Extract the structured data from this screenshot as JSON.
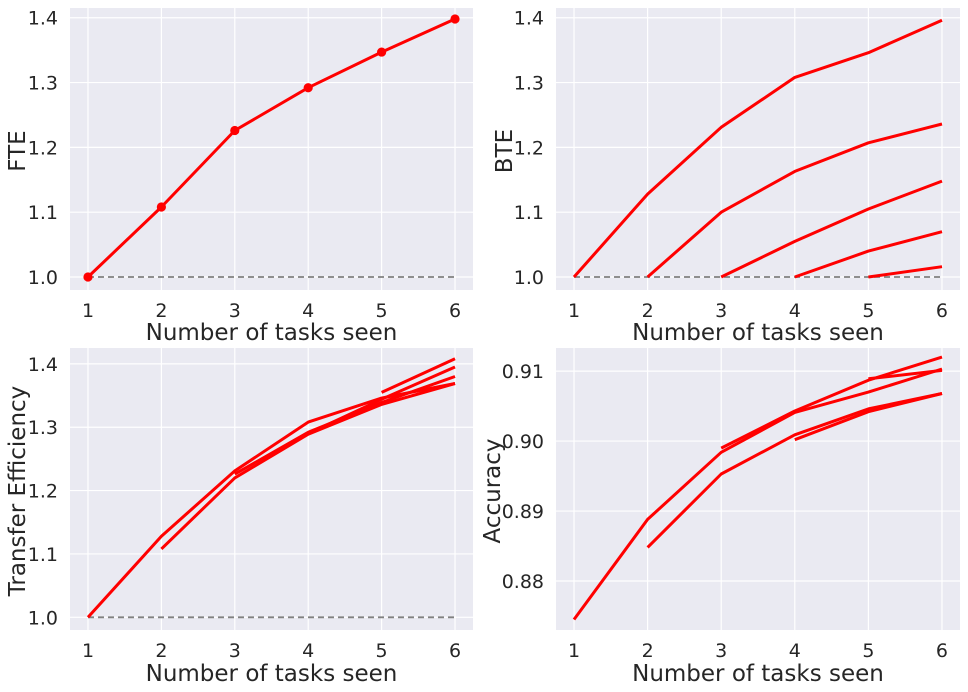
{
  "chart_data": [
    {
      "type": "line",
      "xlabel": "Number of tasks seen",
      "ylabel": "FTE",
      "x": [
        1,
        2,
        3,
        4,
        5,
        6
      ],
      "xticks": [
        "1",
        "2",
        "3",
        "4",
        "5",
        "6"
      ],
      "yticks": [
        "1.0",
        "1.1",
        "1.2",
        "1.3",
        "1.4"
      ],
      "ylim": [
        0.98,
        1.415
      ],
      "grid": true,
      "markers": true,
      "reference_line": {
        "y": 1.0,
        "x_range": [
          1,
          6
        ],
        "style": "dashed",
        "color": "#808080"
      },
      "series": [
        {
          "x": [
            1,
            2,
            3,
            4,
            5,
            6
          ],
          "values": [
            1.0,
            1.108,
            1.226,
            1.292,
            1.347,
            1.398
          ]
        }
      ]
    },
    {
      "type": "line",
      "xlabel": "Number of tasks seen",
      "ylabel": "BTE",
      "xticks": [
        "1",
        "2",
        "3",
        "4",
        "5",
        "6"
      ],
      "yticks": [
        "1.0",
        "1.1",
        "1.2",
        "1.3",
        "1.4"
      ],
      "ylim": [
        0.98,
        1.415
      ],
      "grid": true,
      "markers": false,
      "reference_line": {
        "y": 1.0,
        "x_range": [
          1,
          6
        ],
        "style": "dashed",
        "color": "#808080"
      },
      "series": [
        {
          "x": [
            1,
            2,
            3,
            4,
            5,
            6
          ],
          "values": [
            1.0,
            1.128,
            1.231,
            1.308,
            1.346,
            1.396
          ]
        },
        {
          "x": [
            2,
            3,
            4,
            5,
            6
          ],
          "values": [
            1.0,
            1.1,
            1.163,
            1.207,
            1.236
          ]
        },
        {
          "x": [
            3,
            4,
            5,
            6
          ],
          "values": [
            1.0,
            1.055,
            1.105,
            1.148
          ]
        },
        {
          "x": [
            4,
            5,
            6
          ],
          "values": [
            1.0,
            1.04,
            1.07
          ]
        },
        {
          "x": [
            5,
            6
          ],
          "values": [
            1.0,
            1.016
          ]
        }
      ]
    },
    {
      "type": "line",
      "xlabel": "Number of tasks seen",
      "ylabel": "Transfer Efficiency",
      "xticks": [
        "1",
        "2",
        "3",
        "4",
        "5",
        "6"
      ],
      "yticks": [
        "1.0",
        "1.1",
        "1.2",
        "1.3",
        "1.4"
      ],
      "ylim": [
        0.98,
        1.425
      ],
      "grid": true,
      "markers": false,
      "reference_line": {
        "y": 1.0,
        "x_range": [
          1,
          6
        ],
        "style": "dashed",
        "color": "#808080"
      },
      "series": [
        {
          "x": [
            1,
            2,
            3,
            4,
            5,
            6
          ],
          "values": [
            1.0,
            1.128,
            1.231,
            1.308,
            1.346,
            1.369
          ]
        },
        {
          "x": [
            2,
            3,
            4,
            5,
            6
          ],
          "values": [
            1.108,
            1.22,
            1.289,
            1.336,
            1.369
          ]
        },
        {
          "x": [
            3,
            4,
            5,
            6
          ],
          "values": [
            1.226,
            1.292,
            1.339,
            1.38
          ]
        },
        {
          "x": [
            4,
            5,
            6
          ],
          "values": [
            1.29,
            1.344,
            1.395
          ]
        },
        {
          "x": [
            5,
            6
          ],
          "values": [
            1.355,
            1.408
          ]
        }
      ]
    },
    {
      "type": "line",
      "xlabel": "Number of tasks seen",
      "ylabel": "Accuracy",
      "xticks": [
        "1",
        "2",
        "3",
        "4",
        "5",
        "6"
      ],
      "yticks": [
        "0.88",
        "0.89",
        "0.90",
        "0.91"
      ],
      "ylim": [
        0.873,
        0.9133
      ],
      "grid": true,
      "markers": false,
      "series": [
        {
          "x": [
            1,
            2,
            3,
            4,
            5,
            6
          ],
          "values": [
            0.8745,
            0.8888,
            0.8984,
            0.9041,
            0.907,
            0.9103
          ]
        },
        {
          "x": [
            2,
            3,
            4,
            5,
            6
          ],
          "values": [
            0.8848,
            0.8953,
            0.9009,
            0.9046,
            0.9068
          ]
        },
        {
          "x": [
            3,
            4,
            5,
            6
          ],
          "values": [
            0.899,
            0.9043,
            0.9087,
            0.912
          ]
        },
        {
          "x": [
            4,
            5,
            6
          ],
          "values": [
            0.9002,
            0.9042,
            0.9068
          ]
        },
        {
          "x": [
            5,
            6
          ],
          "values": [
            0.9089,
            0.9101
          ]
        }
      ]
    }
  ]
}
